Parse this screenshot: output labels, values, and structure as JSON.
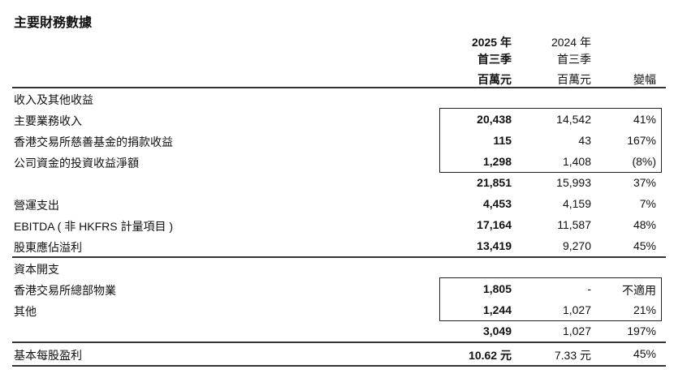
{
  "title": "主要財務數據",
  "header": {
    "col1": [
      "2025 年",
      "首三季",
      "百萬元"
    ],
    "col2": [
      "2024 年",
      "首三季",
      "百萬元"
    ],
    "col3": "變幅"
  },
  "rows": [
    {
      "label": "收入及其他收益",
      "v2025": "",
      "v2024": "",
      "change": ""
    },
    {
      "label": "主要業務收入",
      "v2025": "20,438",
      "v2024": "14,542",
      "change": "41%"
    },
    {
      "label": "香港交易所慈善基金的捐款收益",
      "v2025": "115",
      "v2024": "43",
      "change": "167%"
    },
    {
      "label": "公司資金的投資收益淨額",
      "v2025": "1,298",
      "v2024": "1,408",
      "change": "(8%)"
    },
    {
      "label": "",
      "v2025": "21,851",
      "v2024": "15,993",
      "change": "37%"
    },
    {
      "label": "營運支出",
      "v2025": "4,453",
      "v2024": "4,159",
      "change": "7%"
    },
    {
      "label": "EBITDA ( 非 HKFRS 計量項目 )",
      "v2025": "17,164",
      "v2024": "11,587",
      "change": "48%"
    },
    {
      "label": "股東應佔溢利",
      "v2025": "13,419",
      "v2024": "9,270",
      "change": "45%"
    },
    {
      "label": "資本開支",
      "v2025": "",
      "v2024": "",
      "change": ""
    },
    {
      "label": "香港交易所總部物業",
      "v2025": "1,805",
      "v2024": "-",
      "change": "不適用"
    },
    {
      "label": "其他",
      "v2025": "1,244",
      "v2024": "1,027",
      "change": "21%"
    },
    {
      "label": "",
      "v2025": "3,049",
      "v2024": "1,027",
      "change": "197%"
    },
    {
      "label": "基本每股盈利",
      "v2025": "10.62 元",
      "v2024": "7.33 元",
      "change": "45%"
    }
  ]
}
